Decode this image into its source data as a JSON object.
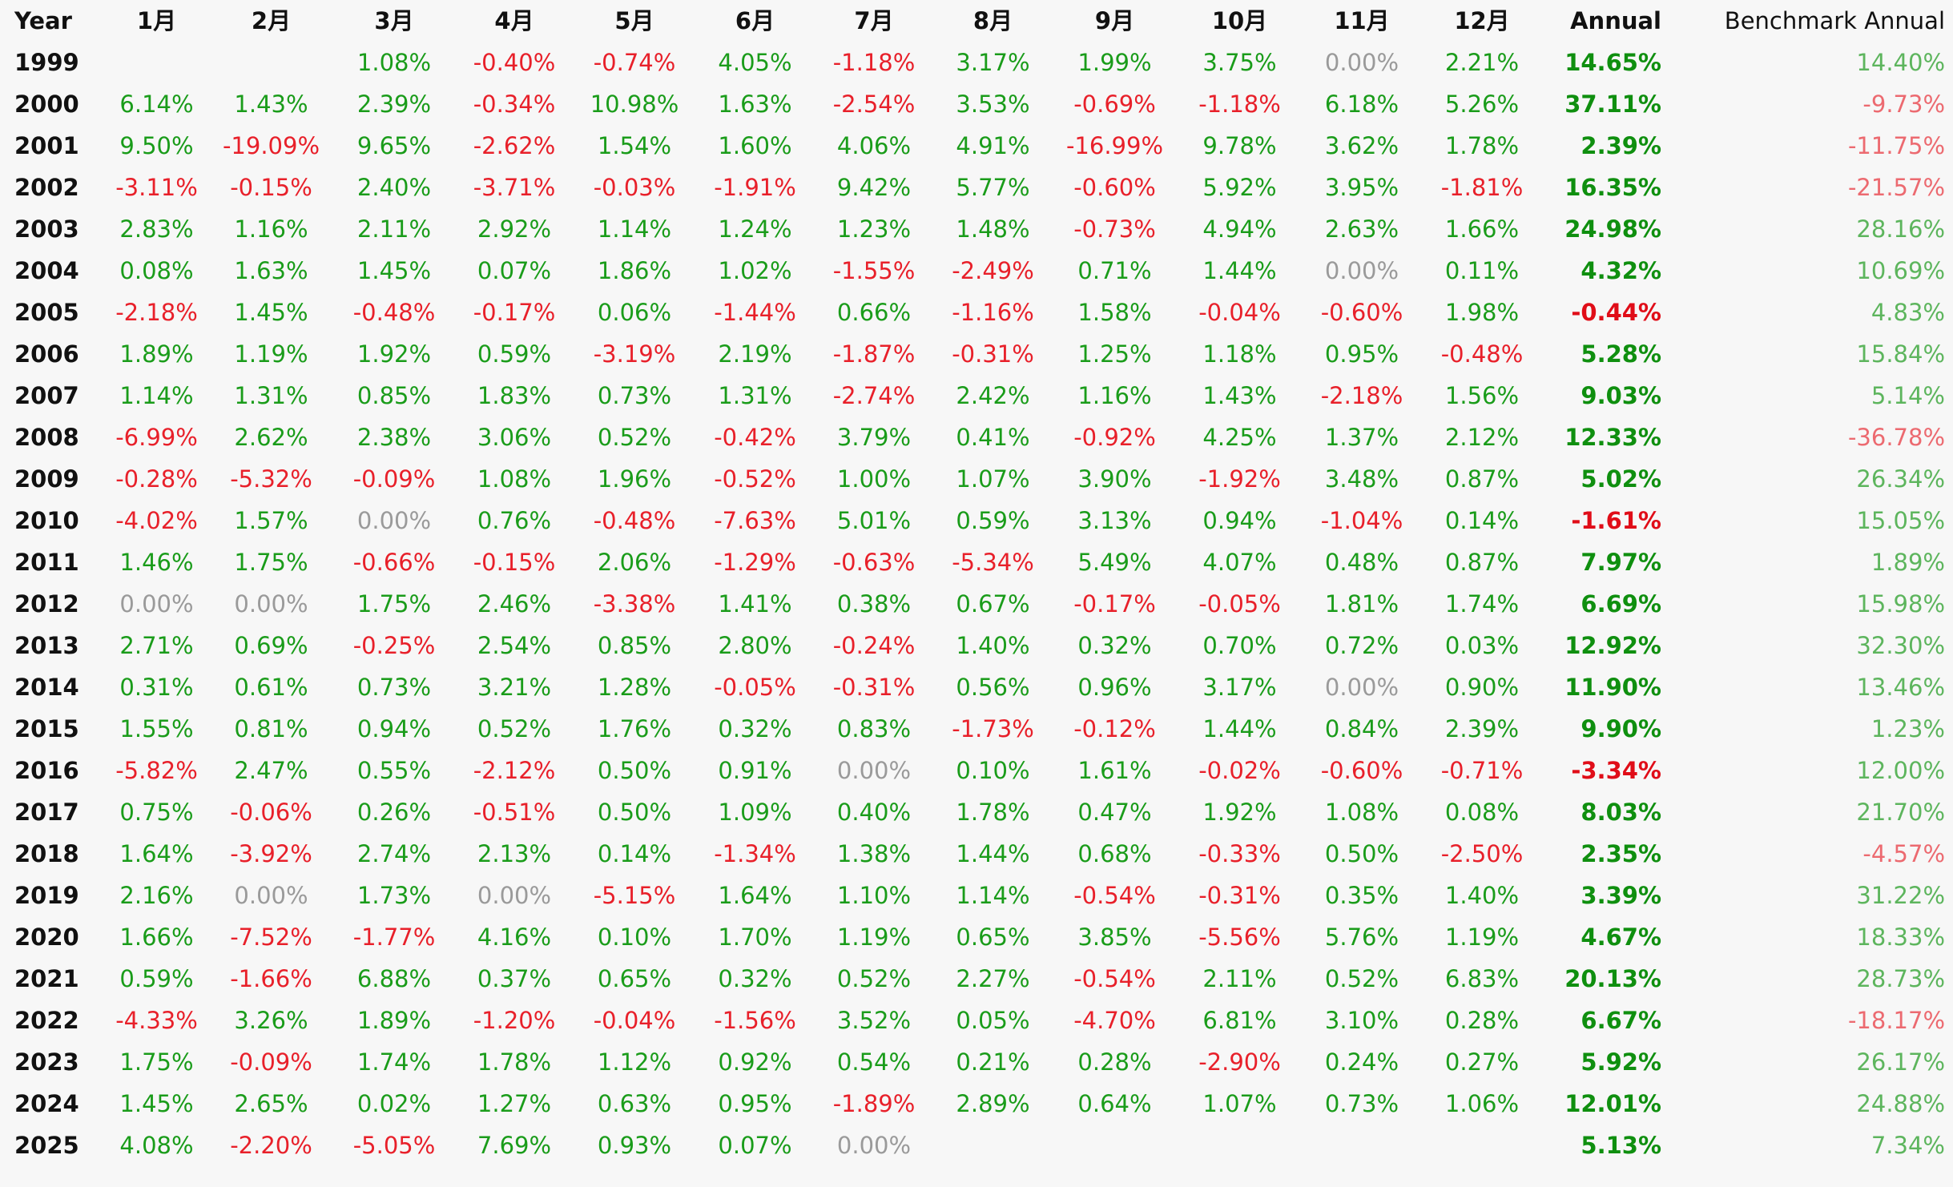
{
  "columns": {
    "year": "Year",
    "months": [
      "1月",
      "2月",
      "3月",
      "4月",
      "5月",
      "6月",
      "7月",
      "8月",
      "9月",
      "10月",
      "11月",
      "12月"
    ],
    "annual": "Annual",
    "benchmark": "Benchmark Annual"
  },
  "colors": {
    "positive": "#1a9c1a",
    "negative": "#e8202a",
    "zero": "#9a9a9a",
    "annual_positive": "#0f8f0f",
    "annual_negative": "#e00d18",
    "benchmark_positive": "#5db55d",
    "benchmark_negative": "#ec6a70",
    "background": "#f7f7f7"
  },
  "rows": [
    {
      "year": "1999",
      "months": [
        "",
        "",
        "1.08%",
        "-0.40%",
        "-0.74%",
        "4.05%",
        "-1.18%",
        "3.17%",
        "1.99%",
        "3.75%",
        "0.00%",
        "2.21%"
      ],
      "annual": "14.65%",
      "benchmark": "14.40%"
    },
    {
      "year": "2000",
      "months": [
        "6.14%",
        "1.43%",
        "2.39%",
        "-0.34%",
        "10.98%",
        "1.63%",
        "-2.54%",
        "3.53%",
        "-0.69%",
        "-1.18%",
        "6.18%",
        "5.26%"
      ],
      "annual": "37.11%",
      "benchmark": "-9.73%"
    },
    {
      "year": "2001",
      "months": [
        "9.50%",
        "-19.09%",
        "9.65%",
        "-2.62%",
        "1.54%",
        "1.60%",
        "4.06%",
        "4.91%",
        "-16.99%",
        "9.78%",
        "3.62%",
        "1.78%"
      ],
      "annual": "2.39%",
      "benchmark": "-11.75%"
    },
    {
      "year": "2002",
      "months": [
        "-3.11%",
        "-0.15%",
        "2.40%",
        "-3.71%",
        "-0.03%",
        "-1.91%",
        "9.42%",
        "5.77%",
        "-0.60%",
        "5.92%",
        "3.95%",
        "-1.81%"
      ],
      "annual": "16.35%",
      "benchmark": "-21.57%"
    },
    {
      "year": "2003",
      "months": [
        "2.83%",
        "1.16%",
        "2.11%",
        "2.92%",
        "1.14%",
        "1.24%",
        "1.23%",
        "1.48%",
        "-0.73%",
        "4.94%",
        "2.63%",
        "1.66%"
      ],
      "annual": "24.98%",
      "benchmark": "28.16%"
    },
    {
      "year": "2004",
      "months": [
        "0.08%",
        "1.63%",
        "1.45%",
        "0.07%",
        "1.86%",
        "1.02%",
        "-1.55%",
        "-2.49%",
        "0.71%",
        "1.44%",
        "0.00%",
        "0.11%"
      ],
      "annual": "4.32%",
      "benchmark": "10.69%"
    },
    {
      "year": "2005",
      "months": [
        "-2.18%",
        "1.45%",
        "-0.48%",
        "-0.17%",
        "0.06%",
        "-1.44%",
        "0.66%",
        "-1.16%",
        "1.58%",
        "-0.04%",
        "-0.60%",
        "1.98%"
      ],
      "annual": "-0.44%",
      "benchmark": "4.83%"
    },
    {
      "year": "2006",
      "months": [
        "1.89%",
        "1.19%",
        "1.92%",
        "0.59%",
        "-3.19%",
        "2.19%",
        "-1.87%",
        "-0.31%",
        "1.25%",
        "1.18%",
        "0.95%",
        "-0.48%"
      ],
      "annual": "5.28%",
      "benchmark": "15.84%"
    },
    {
      "year": "2007",
      "months": [
        "1.14%",
        "1.31%",
        "0.85%",
        "1.83%",
        "0.73%",
        "1.31%",
        "-2.74%",
        "2.42%",
        "1.16%",
        "1.43%",
        "-2.18%",
        "1.56%"
      ],
      "annual": "9.03%",
      "benchmark": "5.14%"
    },
    {
      "year": "2008",
      "months": [
        "-6.99%",
        "2.62%",
        "2.38%",
        "3.06%",
        "0.52%",
        "-0.42%",
        "3.79%",
        "0.41%",
        "-0.92%",
        "4.25%",
        "1.37%",
        "2.12%"
      ],
      "annual": "12.33%",
      "benchmark": "-36.78%"
    },
    {
      "year": "2009",
      "months": [
        "-0.28%",
        "-5.32%",
        "-0.09%",
        "1.08%",
        "1.96%",
        "-0.52%",
        "1.00%",
        "1.07%",
        "3.90%",
        "-1.92%",
        "3.48%",
        "0.87%"
      ],
      "annual": "5.02%",
      "benchmark": "26.34%"
    },
    {
      "year": "2010",
      "months": [
        "-4.02%",
        "1.57%",
        "0.00%",
        "0.76%",
        "-0.48%",
        "-7.63%",
        "5.01%",
        "0.59%",
        "3.13%",
        "0.94%",
        "-1.04%",
        "0.14%"
      ],
      "annual": "-1.61%",
      "benchmark": "15.05%"
    },
    {
      "year": "2011",
      "months": [
        "1.46%",
        "1.75%",
        "-0.66%",
        "-0.15%",
        "2.06%",
        "-1.29%",
        "-0.63%",
        "-5.34%",
        "5.49%",
        "4.07%",
        "0.48%",
        "0.87%"
      ],
      "annual": "7.97%",
      "benchmark": "1.89%"
    },
    {
      "year": "2012",
      "months": [
        "0.00%",
        "0.00%",
        "1.75%",
        "2.46%",
        "-3.38%",
        "1.41%",
        "0.38%",
        "0.67%",
        "-0.17%",
        "-0.05%",
        "1.81%",
        "1.74%"
      ],
      "annual": "6.69%",
      "benchmark": "15.98%"
    },
    {
      "year": "2013",
      "months": [
        "2.71%",
        "0.69%",
        "-0.25%",
        "2.54%",
        "0.85%",
        "2.80%",
        "-0.24%",
        "1.40%",
        "0.32%",
        "0.70%",
        "0.72%",
        "0.03%"
      ],
      "annual": "12.92%",
      "benchmark": "32.30%"
    },
    {
      "year": "2014",
      "months": [
        "0.31%",
        "0.61%",
        "0.73%",
        "3.21%",
        "1.28%",
        "-0.05%",
        "-0.31%",
        "0.56%",
        "0.96%",
        "3.17%",
        "0.00%",
        "0.90%"
      ],
      "annual": "11.90%",
      "benchmark": "13.46%"
    },
    {
      "year": "2015",
      "months": [
        "1.55%",
        "0.81%",
        "0.94%",
        "0.52%",
        "1.76%",
        "0.32%",
        "0.83%",
        "-1.73%",
        "-0.12%",
        "1.44%",
        "0.84%",
        "2.39%"
      ],
      "annual": "9.90%",
      "benchmark": "1.23%"
    },
    {
      "year": "2016",
      "months": [
        "-5.82%",
        "2.47%",
        "0.55%",
        "-2.12%",
        "0.50%",
        "0.91%",
        "0.00%",
        "0.10%",
        "1.61%",
        "-0.02%",
        "-0.60%",
        "-0.71%"
      ],
      "annual": "-3.34%",
      "benchmark": "12.00%"
    },
    {
      "year": "2017",
      "months": [
        "0.75%",
        "-0.06%",
        "0.26%",
        "-0.51%",
        "0.50%",
        "1.09%",
        "0.40%",
        "1.78%",
        "0.47%",
        "1.92%",
        "1.08%",
        "0.08%"
      ],
      "annual": "8.03%",
      "benchmark": "21.70%"
    },
    {
      "year": "2018",
      "months": [
        "1.64%",
        "-3.92%",
        "2.74%",
        "2.13%",
        "0.14%",
        "-1.34%",
        "1.38%",
        "1.44%",
        "0.68%",
        "-0.33%",
        "0.50%",
        "-2.50%"
      ],
      "annual": "2.35%",
      "benchmark": "-4.57%"
    },
    {
      "year": "2019",
      "months": [
        "2.16%",
        "0.00%",
        "1.73%",
        "0.00%",
        "-5.15%",
        "1.64%",
        "1.10%",
        "1.14%",
        "-0.54%",
        "-0.31%",
        "0.35%",
        "1.40%"
      ],
      "annual": "3.39%",
      "benchmark": "31.22%"
    },
    {
      "year": "2020",
      "months": [
        "1.66%",
        "-7.52%",
        "-1.77%",
        "4.16%",
        "0.10%",
        "1.70%",
        "1.19%",
        "0.65%",
        "3.85%",
        "-5.56%",
        "5.76%",
        "1.19%"
      ],
      "annual": "4.67%",
      "benchmark": "18.33%"
    },
    {
      "year": "2021",
      "months": [
        "0.59%",
        "-1.66%",
        "6.88%",
        "0.37%",
        "0.65%",
        "0.32%",
        "0.52%",
        "2.27%",
        "-0.54%",
        "2.11%",
        "0.52%",
        "6.83%"
      ],
      "annual": "20.13%",
      "benchmark": "28.73%"
    },
    {
      "year": "2022",
      "months": [
        "-4.33%",
        "3.26%",
        "1.89%",
        "-1.20%",
        "-0.04%",
        "-1.56%",
        "3.52%",
        "0.05%",
        "-4.70%",
        "6.81%",
        "3.10%",
        "0.28%"
      ],
      "annual": "6.67%",
      "benchmark": "-18.17%"
    },
    {
      "year": "2023",
      "months": [
        "1.75%",
        "-0.09%",
        "1.74%",
        "1.78%",
        "1.12%",
        "0.92%",
        "0.54%",
        "0.21%",
        "0.28%",
        "-2.90%",
        "0.24%",
        "0.27%"
      ],
      "annual": "5.92%",
      "benchmark": "26.17%"
    },
    {
      "year": "2024",
      "months": [
        "1.45%",
        "2.65%",
        "0.02%",
        "1.27%",
        "0.63%",
        "0.95%",
        "-1.89%",
        "2.89%",
        "0.64%",
        "1.07%",
        "0.73%",
        "1.06%"
      ],
      "annual": "12.01%",
      "benchmark": "24.88%"
    },
    {
      "year": "2025",
      "months": [
        "4.08%",
        "-2.20%",
        "-5.05%",
        "7.69%",
        "0.93%",
        "0.07%",
        "0.00%",
        "",
        "",
        "",
        "",
        ""
      ],
      "annual": "5.13%",
      "benchmark": "7.34%"
    }
  ]
}
